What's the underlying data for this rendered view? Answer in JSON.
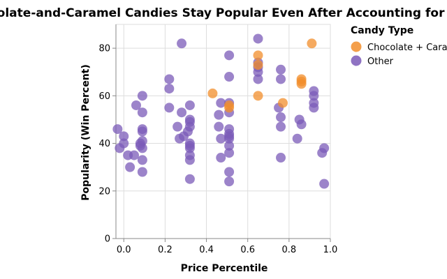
{
  "chart_data": {
    "type": "scatter",
    "title": "Chocolate-and-Caramel Candies Stay Popular Even After Accounting for Price",
    "xlabel": "Price Percentile",
    "ylabel": "Popularity (Win Percent)",
    "xlim": [
      0,
      1
    ],
    "ylim": [
      0,
      90
    ],
    "xticks": [
      0.0,
      0.2,
      0.4,
      0.6,
      0.8,
      1.0
    ],
    "xtick_labels": [
      "0.0",
      "0.2",
      "0.4",
      "0.6",
      "0.8",
      "1.0"
    ],
    "yticks": [
      0,
      20,
      40,
      60,
      80
    ],
    "ytick_labels": [
      "0",
      "20",
      "40",
      "60",
      "80"
    ],
    "grid": true,
    "legend": {
      "title": "Candy Type",
      "position": "right",
      "entries": [
        {
          "name": "Chocolate + Caramel",
          "color": "#f28e2b"
        },
        {
          "name": "Other",
          "color": "#7b5bb8"
        }
      ]
    },
    "series": [
      {
        "name": "Other",
        "color": "#7b5bb8",
        "points": [
          [
            -0.03,
            46
          ],
          [
            -0.02,
            38
          ],
          [
            0.0,
            43
          ],
          [
            0.0,
            40
          ],
          [
            0.02,
            35
          ],
          [
            0.03,
            30
          ],
          [
            0.05,
            35
          ],
          [
            0.06,
            56
          ],
          [
            0.08,
            40
          ],
          [
            0.08,
            39
          ],
          [
            0.09,
            53
          ],
          [
            0.09,
            60
          ],
          [
            0.09,
            46
          ],
          [
            0.09,
            45
          ],
          [
            0.09,
            41
          ],
          [
            0.09,
            38
          ],
          [
            0.09,
            33
          ],
          [
            0.09,
            28
          ],
          [
            0.22,
            67
          ],
          [
            0.22,
            63
          ],
          [
            0.22,
            55
          ],
          [
            0.26,
            47
          ],
          [
            0.27,
            42
          ],
          [
            0.28,
            53
          ],
          [
            0.28,
            82
          ],
          [
            0.29,
            43
          ],
          [
            0.31,
            45
          ],
          [
            0.32,
            56
          ],
          [
            0.32,
            50
          ],
          [
            0.32,
            49
          ],
          [
            0.32,
            47
          ],
          [
            0.32,
            40
          ],
          [
            0.32,
            39
          ],
          [
            0.32,
            38
          ],
          [
            0.32,
            35
          ],
          [
            0.32,
            33
          ],
          [
            0.32,
            25
          ],
          [
            0.46,
            52
          ],
          [
            0.46,
            47
          ],
          [
            0.47,
            57
          ],
          [
            0.47,
            42
          ],
          [
            0.47,
            34
          ],
          [
            0.51,
            77
          ],
          [
            0.51,
            68
          ],
          [
            0.51,
            57
          ],
          [
            0.51,
            53
          ],
          [
            0.51,
            46
          ],
          [
            0.51,
            44
          ],
          [
            0.51,
            43
          ],
          [
            0.51,
            42
          ],
          [
            0.51,
            39
          ],
          [
            0.51,
            36
          ],
          [
            0.51,
            28
          ],
          [
            0.51,
            24
          ],
          [
            0.65,
            84
          ],
          [
            0.65,
            74
          ],
          [
            0.65,
            72
          ],
          [
            0.65,
            70
          ],
          [
            0.65,
            67
          ],
          [
            0.75,
            55
          ],
          [
            0.76,
            71
          ],
          [
            0.76,
            67
          ],
          [
            0.76,
            51
          ],
          [
            0.76,
            47
          ],
          [
            0.76,
            34
          ],
          [
            0.84,
            42
          ],
          [
            0.85,
            50
          ],
          [
            0.86,
            48
          ],
          [
            0.92,
            62
          ],
          [
            0.92,
            60
          ],
          [
            0.92,
            57
          ],
          [
            0.92,
            55
          ],
          [
            0.96,
            36
          ],
          [
            0.97,
            38
          ],
          [
            0.97,
            23
          ]
        ]
      },
      {
        "name": "Chocolate + Caramel",
        "color": "#f28e2b",
        "points": [
          [
            0.43,
            61
          ],
          [
            0.51,
            56
          ],
          [
            0.51,
            55
          ],
          [
            0.65,
            77
          ],
          [
            0.65,
            73
          ],
          [
            0.65,
            60
          ],
          [
            0.77,
            57
          ],
          [
            0.86,
            67
          ],
          [
            0.86,
            66
          ],
          [
            0.86,
            65
          ],
          [
            0.91,
            82
          ]
        ]
      }
    ]
  }
}
